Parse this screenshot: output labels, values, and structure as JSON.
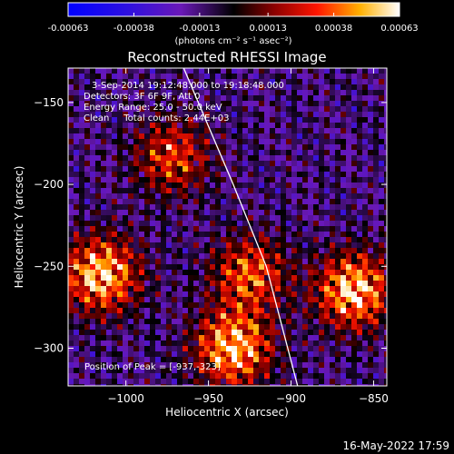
{
  "chart_data": {
    "type": "heatmap",
    "title": "Reconstructed RHESSI Image",
    "xlabel": "Heliocentric X (arcsec)",
    "ylabel": "Heliocentric Y (arcsec)",
    "xlim": [
      -1035,
      -842
    ],
    "ylim": [
      -323,
      -129
    ],
    "x_ticks": [
      -1000,
      -950,
      -900,
      -850
    ],
    "x_tick_labels": [
      "−1000",
      "−950",
      "−900",
      "−850"
    ],
    "y_ticks": [
      -300,
      -250,
      -200,
      -150
    ],
    "y_tick_labels": [
      "−300",
      "−250",
      "−200",
      "−150"
    ],
    "colorbar": {
      "min": -0.00063,
      "max": 0.00063,
      "ticks": [
        -0.00063,
        -0.00038,
        -0.00013,
        0.00013,
        0.00038,
        0.00063
      ],
      "tick_labels": [
        "-0.00063",
        "-0.00038",
        "-0.00013",
        "0.00013",
        "0.00038",
        "0.00063"
      ],
      "unit_label": "(photons cm⁻² s⁻¹ asec⁻²)"
    },
    "annotations": {
      "time_range": "3-Sep-2014 19:12:48.000 to 19:18:48.000",
      "detectors": "Detectors: 3F 6F 9F, Att 0",
      "energy_range": "Energy Range: 25.0 - 50.0 keV",
      "algorithm_counts": "Clean     Total counts: 2.44E+03",
      "peak_position": "Position of Peak = [-937,-323]"
    },
    "bright_regions": [
      {
        "x": -1015,
        "y": -255,
        "intensity": 0.00063
      },
      {
        "x": -935,
        "y": -300,
        "intensity": 0.00063
      },
      {
        "x": -862,
        "y": -265,
        "intensity": 0.00063
      },
      {
        "x": -925,
        "y": -255,
        "intensity": 0.00045
      },
      {
        "x": -972,
        "y": -183,
        "intensity": 0.0004
      }
    ],
    "limb_curve": [
      [
        -965,
        -129
      ],
      [
        -935,
        -200
      ],
      [
        -915,
        -250
      ],
      [
        -896,
        -323
      ]
    ]
  },
  "footer": {
    "date": "16-May-2022 17:59"
  }
}
